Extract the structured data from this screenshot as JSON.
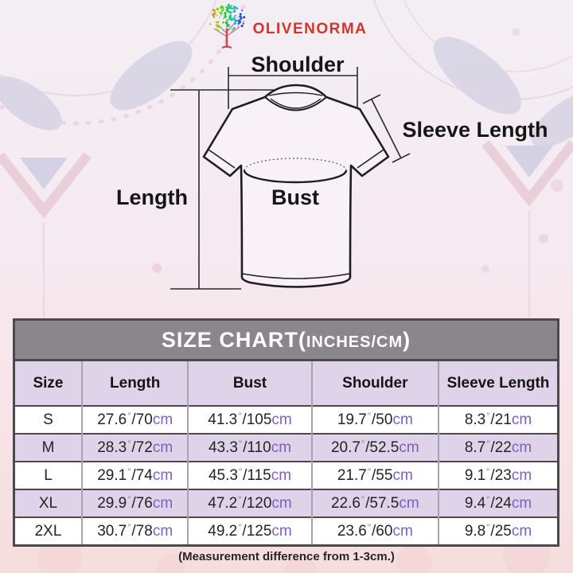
{
  "brand": {
    "name": "OLIVENORMA",
    "logo_icon": "tree-icon",
    "accent_red": "#d5342b"
  },
  "diagram": {
    "labels": {
      "shoulder": "Shoulder",
      "sleeve_length": "Sleeve Length",
      "length": "Length",
      "bust": "Bust"
    }
  },
  "size_chart": {
    "title_main": "SIZE CHART(",
    "title_unit": "INCHES/CM",
    "title_close": ")",
    "columns": [
      "Size",
      "Length",
      "Bust",
      "Shoulder",
      "Sleeve Length"
    ],
    "unit": {
      "inch_mark": "″",
      "separator": "/",
      "cm_suffix": "cm"
    },
    "rows": [
      {
        "size": "S",
        "measurements": [
          {
            "in": "27.6",
            "cm": "70"
          },
          {
            "in": "41.3",
            "cm": "105"
          },
          {
            "in": "19.7",
            "cm": "50"
          },
          {
            "in": "8.3",
            "cm": "21"
          }
        ]
      },
      {
        "size": "M",
        "measurements": [
          {
            "in": "28.3",
            "cm": "72"
          },
          {
            "in": "43.3",
            "cm": "110"
          },
          {
            "in": "20.7",
            "cm": "52.5"
          },
          {
            "in": "8.7",
            "cm": "22"
          }
        ]
      },
      {
        "size": "L",
        "measurements": [
          {
            "in": "29.1",
            "cm": "74"
          },
          {
            "in": "45.3",
            "cm": "115"
          },
          {
            "in": "21.7",
            "cm": "55"
          },
          {
            "in": "9.1",
            "cm": "23"
          }
        ]
      },
      {
        "size": "XL",
        "measurements": [
          {
            "in": "29.9",
            "cm": "76"
          },
          {
            "in": "47.2",
            "cm": "120"
          },
          {
            "in": "22.6",
            "cm": "57.5"
          },
          {
            "in": "9.4",
            "cm": "24"
          }
        ]
      },
      {
        "size": "2XL",
        "measurements": [
          {
            "in": "30.7",
            "cm": "78"
          },
          {
            "in": "49.2",
            "cm": "125"
          },
          {
            "in": "23.6",
            "cm": "60"
          },
          {
            "in": "9.8",
            "cm": "25"
          }
        ]
      }
    ]
  },
  "footer": {
    "note": "(Measurement difference from 1-3cm.)"
  },
  "colors": {
    "title_bar_gray": "#8a868c",
    "row_lavender": "#ded3e9",
    "cm_purple": "#7e5fc2",
    "brand_red": "#d5342b"
  }
}
